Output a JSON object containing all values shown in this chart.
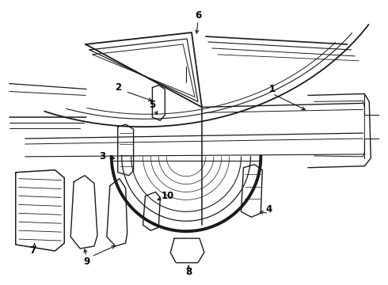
{
  "bg_color": "#ffffff",
  "line_color": "#1a1a1a",
  "label_color": "#000000",
  "figsize": [
    4.9,
    3.6
  ],
  "dpi": 100,
  "label_fontsize": 8.5,
  "arrow_color": "#1a1a1a"
}
